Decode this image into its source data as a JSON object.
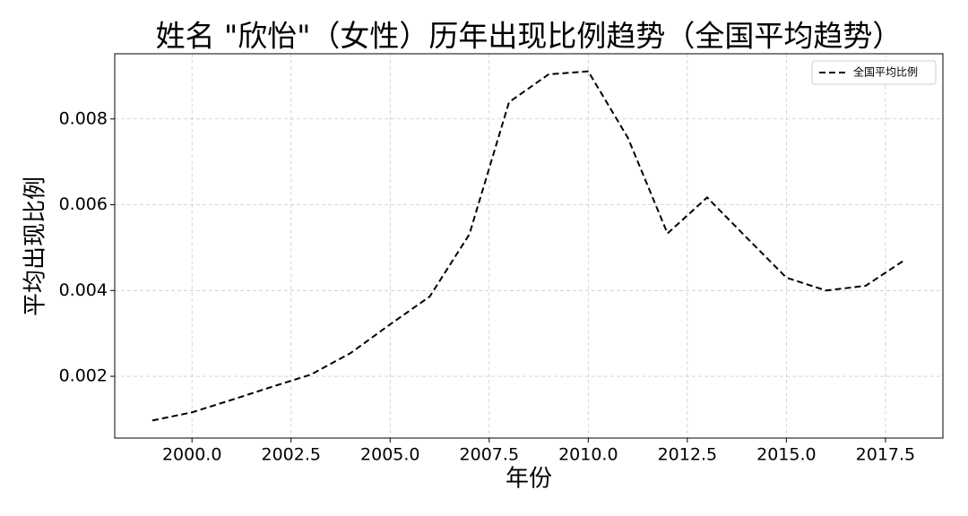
{
  "chart_data": {
    "type": "line",
    "title": "姓名 \"欣怡\"（女性）历年出现比例趋势（全国平均趋势）",
    "x_label": "年份",
    "y_label": "平均出现比例",
    "x": [
      1999,
      2000,
      2001,
      2002,
      2003,
      2004,
      2005,
      2006,
      2007,
      2008,
      2009,
      2010,
      2011,
      2012,
      2013,
      2014,
      2015,
      2016,
      2017,
      2018
    ],
    "series": [
      {
        "name": "全国平均比例",
        "color": "#000000",
        "dash": "dashed",
        "values": [
          0.00097,
          0.00116,
          0.00145,
          0.00175,
          0.00204,
          0.00254,
          0.00321,
          0.00386,
          0.00531,
          0.00839,
          0.00904,
          0.00911,
          0.00756,
          0.00533,
          0.00617,
          0.00523,
          0.0043,
          0.004,
          0.00411,
          0.00472
        ]
      }
    ],
    "xlim": [
      1998.05,
      2018.95
    ],
    "xticks": [
      {
        "value": 2000,
        "label": "2000.0"
      },
      {
        "value": 2002.5,
        "label": "2002.5"
      },
      {
        "value": 2005,
        "label": "2005.0"
      },
      {
        "value": 2007.5,
        "label": "2007.5"
      },
      {
        "value": 2010,
        "label": "2010.0"
      },
      {
        "value": 2012.5,
        "label": "2012.5"
      },
      {
        "value": 2015,
        "label": "2015.0"
      },
      {
        "value": 2017.5,
        "label": "2017.5"
      }
    ],
    "ylim": [
      0.00056,
      0.00952
    ],
    "yticks": [
      0.002,
      0.004,
      0.006,
      0.008
    ],
    "grid": true,
    "legend": "upper right"
  }
}
